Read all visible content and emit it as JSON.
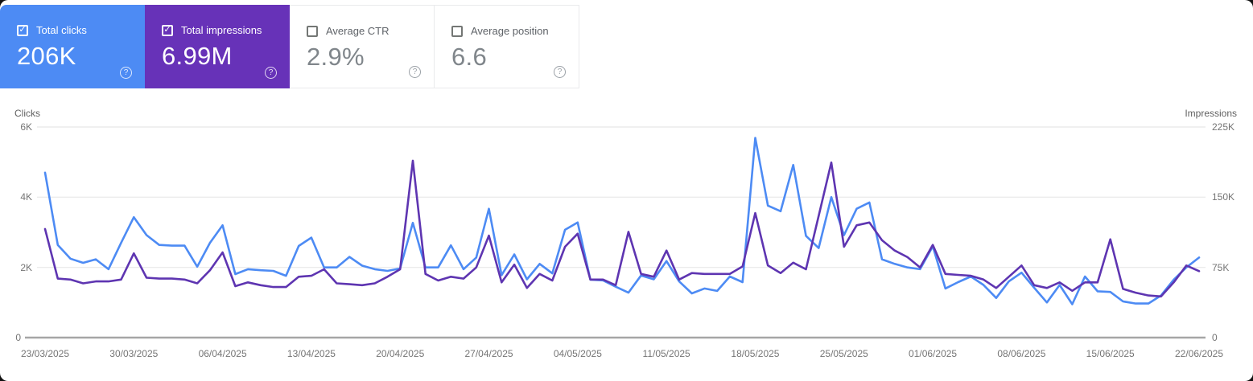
{
  "icons": {
    "checkmark": "✓",
    "help": "?"
  },
  "cards": [
    {
      "label": "Total clicks",
      "value": "206K",
      "checked": true,
      "bg": "#4d8bf4"
    },
    {
      "label": "Total impressions",
      "value": "6.99M",
      "checked": true,
      "bg": "#6732b8"
    },
    {
      "label": "Average CTR",
      "value": "2.9%",
      "checked": false
    },
    {
      "label": "Average position",
      "value": "6.6",
      "checked": false
    }
  ],
  "chart_data": {
    "type": "line",
    "grid": true,
    "points_per_label_interval": 7,
    "x_labels": [
      "23/03/2025",
      "30/03/2025",
      "06/04/2025",
      "13/04/2025",
      "20/04/2025",
      "27/04/2025",
      "04/05/2025",
      "11/05/2025",
      "18/05/2025",
      "25/05/2025",
      "01/06/2025",
      "08/06/2025",
      "15/06/2025",
      "22/06/2025"
    ],
    "left_axis": {
      "title": "Clicks",
      "max": 6000,
      "ticks": [
        "6K",
        "4K",
        "2K",
        "0"
      ]
    },
    "right_axis": {
      "title": "Impressions",
      "max": 225000,
      "ticks": [
        "225K",
        "150K",
        "75K",
        "0"
      ]
    },
    "series": [
      {
        "name": "Total clicks",
        "axis": "left",
        "color": "#4d8bf4",
        "values": [
          4700,
          2640,
          2250,
          2130,
          2230,
          1950,
          2700,
          3430,
          2920,
          2640,
          2620,
          2620,
          2020,
          2700,
          3200,
          1810,
          1950,
          1920,
          1900,
          1760,
          2610,
          2850,
          2000,
          2000,
          2300,
          2050,
          1950,
          1900,
          1970,
          3270,
          2000,
          2000,
          2630,
          1950,
          2280,
          3670,
          1780,
          2370,
          1660,
          2100,
          1830,
          3070,
          3280,
          1650,
          1630,
          1450,
          1280,
          1770,
          1660,
          2180,
          1600,
          1260,
          1400,
          1330,
          1740,
          1580,
          5690,
          3760,
          3600,
          4920,
          2900,
          2550,
          4000,
          2920,
          3670,
          3850,
          2230,
          2100,
          2000,
          1950,
          2600,
          1400,
          1580,
          1740,
          1500,
          1130,
          1600,
          1850,
          1420,
          1000,
          1500,
          950,
          1740,
          1320,
          1300,
          1030,
          970,
          970,
          1200,
          1650,
          2000,
          2280
        ]
      },
      {
        "name": "Total impressions",
        "axis": "right",
        "color": "#5e35b1",
        "values": [
          116000,
          63000,
          62000,
          58000,
          60000,
          60000,
          62000,
          90000,
          64000,
          63000,
          63000,
          62000,
          58000,
          72000,
          91000,
          55000,
          59000,
          56000,
          54000,
          54000,
          65000,
          66000,
          73000,
          58000,
          57000,
          56000,
          58000,
          65000,
          73000,
          189000,
          68000,
          61000,
          65000,
          63000,
          75000,
          109000,
          59000,
          78000,
          53000,
          68000,
          61000,
          97000,
          111000,
          62000,
          62000,
          56000,
          113000,
          68000,
          65000,
          93000,
          62000,
          69000,
          68000,
          68000,
          68000,
          76000,
          133000,
          77000,
          69000,
          80000,
          73000,
          130000,
          187000,
          97000,
          120000,
          123000,
          104000,
          93000,
          86000,
          75000,
          99000,
          68000,
          67000,
          66000,
          62000,
          53000,
          65000,
          77000,
          56000,
          53000,
          59000,
          50000,
          59000,
          59000,
          105000,
          52000,
          48000,
          45000,
          44000,
          59000,
          77000,
          71000
        ]
      }
    ]
  }
}
